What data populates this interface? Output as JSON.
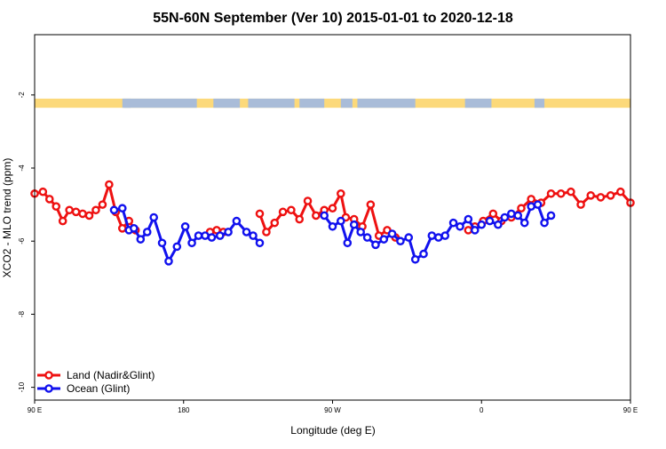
{
  "chart_data": {
    "type": "line",
    "title": "55N-60N September (Ver 10)   2015-01-01 to 2020-12-18",
    "xlabel": "Longitude (deg E)",
    "ylabel": "XCO2 - MLO trend (ppm)",
    "xlim": [
      90,
      450
    ],
    "ylim": [
      -10.35,
      -0.35
    ],
    "x_ticks": [
      {
        "value": 90,
        "label": "90 E"
      },
      {
        "value": 180,
        "label": "180"
      },
      {
        "value": 270,
        "label": "90 W"
      },
      {
        "value": 360,
        "label": "0"
      },
      {
        "value": 450,
        "label": "90 E"
      },
      {
        "value": 540,
        "label": "180"
      }
    ],
    "y_ticks": [
      {
        "value": -2,
        "label": "-2"
      },
      {
        "value": -4,
        "label": "-4"
      },
      {
        "value": -6,
        "label": "-6"
      },
      {
        "value": -8,
        "label": "-8"
      },
      {
        "value": -10,
        "label": "-10"
      }
    ],
    "land_ocean_band": {
      "y_range": [
        -2.1,
        -2.35
      ],
      "land_color": "#fcd97a",
      "ocean_color": "#a9bcd8",
      "ocean_intervals": [
        [
          143,
          148
        ],
        [
          144,
          188
        ],
        [
          198,
          214
        ],
        [
          219,
          247
        ],
        [
          250,
          265
        ],
        [
          275,
          282
        ],
        [
          285,
          320
        ],
        [
          350,
          366
        ],
        [
          392,
          398
        ],
        [
          455,
          470
        ],
        [
          528,
          540
        ]
      ]
    },
    "legend_position": "bottom-left",
    "series": [
      {
        "name": "Land (Nadir&Glint)",
        "color": "#ee1111",
        "segments": [
          {
            "x": [
              90,
              95,
              99,
              103,
              107,
              111,
              115,
              119,
              123,
              127,
              131,
              135,
              139,
              143,
              147,
              151
            ],
            "y": [
              -4.7,
              -4.65,
              -4.85,
              -5.05,
              -5.45,
              -5.15,
              -5.2,
              -5.25,
              -5.3,
              -5.15,
              -5.0,
              -4.45,
              -5.2,
              -5.65,
              -5.45,
              -5.7
            ]
          },
          {
            "x": [
              196,
              200,
              204
            ],
            "y": [
              -5.75,
              -5.7,
              -5.75
            ]
          },
          {
            "x": [
              226,
              230,
              235,
              240,
              245,
              250,
              255,
              260,
              265,
              270,
              275,
              278,
              283,
              288,
              293,
              298,
              303,
              308
            ],
            "y": [
              -5.25,
              -5.75,
              -5.5,
              -5.2,
              -5.15,
              -5.4,
              -4.9,
              -5.3,
              -5.15,
              -5.1,
              -4.7,
              -5.35,
              -5.4,
              -5.6,
              -5.0,
              -5.85,
              -5.7,
              -5.9
            ]
          },
          {
            "x": [
              352,
              356,
              361,
              367,
              372,
              378,
              384,
              390,
              396,
              402,
              408,
              414,
              420,
              426,
              432,
              438,
              444,
              450
            ],
            "y": [
              -5.7,
              -5.6,
              -5.45,
              -5.25,
              -5.45,
              -5.35,
              -5.1,
              -4.85,
              -4.95,
              -4.7,
              -4.7,
              -4.65,
              -5.0,
              -4.75,
              -4.8,
              -4.75,
              -4.65,
              -4.95
            ]
          }
        ]
      },
      {
        "name": "Ocean (Glint)",
        "color": "#1111ee",
        "segments": [
          {
            "x": [
              138,
              143,
              147,
              150,
              154,
              158,
              162,
              167,
              171,
              176,
              181,
              185,
              189,
              193,
              197,
              202,
              207,
              212,
              218,
              222,
              226
            ],
            "y": [
              -5.15,
              -5.1,
              -5.7,
              -5.65,
              -5.95,
              -5.75,
              -5.35,
              -6.05,
              -6.55,
              -6.15,
              -5.6,
              -6.05,
              -5.85,
              -5.85,
              -5.9,
              -5.85,
              -5.75,
              -5.45,
              -5.75,
              -5.85,
              -6.05
            ]
          },
          {
            "x": [
              265,
              270,
              275,
              279,
              283,
              287,
              291,
              296,
              301,
              306,
              311,
              316,
              320,
              325,
              330
            ],
            "y": [
              -5.3,
              -5.6,
              -5.45,
              -6.05,
              -5.55,
              -5.75,
              -5.9,
              -6.1,
              -5.95,
              -5.8,
              -6.0,
              -5.9,
              -6.5,
              -6.35,
              -5.85
            ]
          },
          {
            "x": [
              334,
              338,
              343,
              347,
              352,
              356,
              360
            ],
            "y": [
              -5.9,
              -5.85,
              -5.5,
              -5.6,
              -5.4,
              -5.7,
              -5.55
            ]
          },
          {
            "x": [
              365,
              370,
              374,
              378,
              382,
              386,
              390,
              394,
              398,
              402
            ],
            "y": [
              -5.45,
              -5.55,
              -5.35,
              -5.25,
              -5.3,
              -5.5,
              -5.05,
              -5.0,
              -5.5,
              -5.3
            ]
          }
        ]
      }
    ]
  }
}
